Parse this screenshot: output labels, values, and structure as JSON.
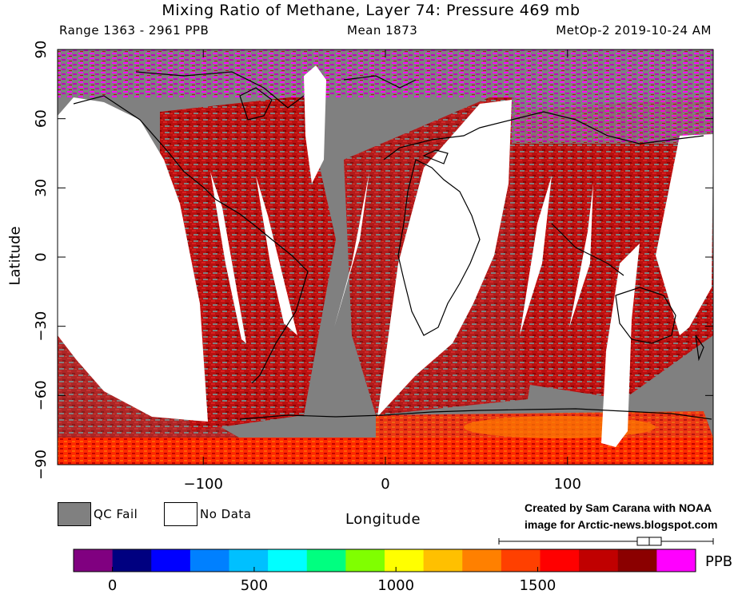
{
  "header": {
    "title": "Mixing Ratio of Methane, Layer 74: Pressure 469 mb",
    "range": "Range 1363 - 2961 PPB",
    "mean": "Mean 1873",
    "source": "MetOp-2 2019-10-24 AM"
  },
  "chart_data": {
    "type": "heatmap",
    "title": "Mixing Ratio of Methane, Layer 74: Pressure 469 mb",
    "xlabel": "Longitude",
    "ylabel": "Latitude",
    "xlim": [
      -180,
      180
    ],
    "ylim": [
      -90,
      90
    ],
    "x_ticks": [
      -100,
      0,
      100
    ],
    "x_tick_labels": [
      "−100",
      "0",
      "100"
    ],
    "y_ticks": [
      90,
      60,
      30,
      0,
      -30,
      -60,
      -90
    ],
    "y_tick_labels": [
      "90",
      "60",
      "30",
      "0",
      "−30",
      "−60",
      "−90"
    ],
    "range_ppb": [
      1363,
      2961
    ],
    "mean_ppb": 1873,
    "colorbar": {
      "unit": "PPB",
      "ticks": [
        0,
        500,
        1000,
        1500
      ],
      "colors": [
        "#800080",
        "#000080",
        "#0000ff",
        "#0080ff",
        "#00c0ff",
        "#00ffff",
        "#00ff80",
        "#80ff00",
        "#ffff00",
        "#ffc000",
        "#ff8000",
        "#ff4000",
        "#ff0000",
        "#c00000",
        "#8b0000",
        "#ff00ff"
      ]
    },
    "legend": [
      {
        "label": "QC Fail",
        "color": "#808080"
      },
      {
        "label": "No Data",
        "color": "#ffffff"
      }
    ],
    "dominant_values_ppb": {
      "general": 1850,
      "high_latitudes_north": 2300,
      "antarctic_margin": 1650
    }
  },
  "credits": {
    "line1": "Created by Sam Carana with NOAA",
    "line2": "image for Arctic-news.blogspot.com"
  }
}
